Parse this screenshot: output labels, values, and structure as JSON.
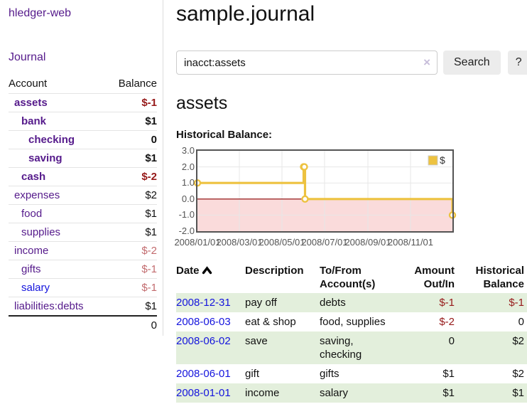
{
  "sidebar": {
    "brand": "hledger-web",
    "nav": {
      "journal": "Journal"
    },
    "table": {
      "col_account": "Account",
      "col_balance": "Balance"
    },
    "accounts": [
      {
        "name": "assets",
        "balance": "$-1",
        "level": 1,
        "bold": true,
        "negativity": "strong"
      },
      {
        "name": "bank",
        "balance": "$1",
        "level": 2,
        "bold": true,
        "negativity": "none"
      },
      {
        "name": "checking",
        "balance": "0",
        "level": 3,
        "bold": true,
        "negativity": "none"
      },
      {
        "name": "saving",
        "balance": "$1",
        "level": 3,
        "bold": true,
        "negativity": "none"
      },
      {
        "name": "cash",
        "balance": "$-2",
        "level": 2,
        "bold": true,
        "negativity": "strong"
      },
      {
        "name": "expenses",
        "balance": "$2",
        "level": 1,
        "bold": false,
        "negativity": "none"
      },
      {
        "name": "food",
        "balance": "$1",
        "level": 2,
        "bold": false,
        "negativity": "none"
      },
      {
        "name": "supplies",
        "balance": "$1",
        "level": 2,
        "bold": false,
        "negativity": "none"
      },
      {
        "name": "income",
        "balance": "$-2",
        "level": 1,
        "bold": false,
        "negativity": "soft"
      },
      {
        "name": "gifts",
        "balance": "$-1",
        "level": 2,
        "bold": false,
        "negativity": "soft"
      },
      {
        "name": "salary",
        "balance": "$-1",
        "level": 2,
        "bold": false,
        "negativity": "soft"
      },
      {
        "name": "liabilities:debts",
        "balance": "$1",
        "level": 1,
        "bold": false,
        "negativity": "none"
      }
    ],
    "total": "0"
  },
  "main": {
    "title": "sample.journal",
    "account_heading": "assets",
    "chart_title": "Historical Balance:"
  },
  "search": {
    "value": "inacct:assets",
    "clear_icon": "×",
    "submit_label": "Search",
    "help_label": "?"
  },
  "chart_data": {
    "type": "line",
    "title": "Historical Balance",
    "legend": {
      "position": "top-right",
      "entries": [
        "$"
      ]
    },
    "x_range": [
      "2008-01-01",
      "2008-12-31"
    ],
    "ylim": [
      -2,
      3
    ],
    "y_ticks": [
      "3.0",
      "2.0",
      "1.0",
      "0.0",
      "-1.0",
      "-2.0"
    ],
    "x_ticks": [
      "2008/01/01",
      "2008/03/01",
      "2008/05/01",
      "2008/07/01",
      "2008/09/01",
      "2008/11/01"
    ],
    "grid": true,
    "series": [
      {
        "name": "$",
        "step": true,
        "color": "#edc240",
        "points": [
          [
            "2008-01-01",
            1
          ],
          [
            "2008-06-01",
            2
          ],
          [
            "2008-06-02",
            2
          ],
          [
            "2008-06-03",
            0
          ],
          [
            "2008-12-31",
            -1
          ]
        ]
      }
    ],
    "colors": {
      "negative_area": "#fadbdb",
      "zero_line": "#8b0000",
      "grid": "#e7e7e7",
      "frame": "#545454",
      "tick_text": "#545454",
      "marker_fill": "#ffffff"
    }
  },
  "register": {
    "columns": {
      "date": "Date",
      "description": "Description",
      "accounts": "To/From Account(s)",
      "amount": "Amount Out/In",
      "balance": "Historical Balance"
    },
    "rows": [
      {
        "date": "2008-12-31",
        "description": "pay off",
        "accounts": "debts",
        "amount": "$-1",
        "balance": "$-1"
      },
      {
        "date": "2008-06-03",
        "description": "eat & shop",
        "accounts": "food, supplies",
        "amount": "$-2",
        "balance": "0"
      },
      {
        "date": "2008-06-02",
        "description": "save",
        "accounts": "saving, checking",
        "amount": "0",
        "balance": "$2"
      },
      {
        "date": "2008-06-01",
        "description": "gift",
        "accounts": "gifts",
        "amount": "$1",
        "balance": "$2"
      },
      {
        "date": "2008-01-01",
        "description": "income",
        "accounts": "salary",
        "amount": "$1",
        "balance": "$1"
      }
    ]
  },
  "colors": {
    "accent_purple": "#551a8b",
    "link_blue": "#1414dd",
    "negative_strong": "#961919",
    "negative_soft": "#c26b6e",
    "row_green": "#e3efdc",
    "chart_line": "#edc240",
    "button_bg": "#ececec",
    "input_border": "#cccccc",
    "clear_icon": "#c7bdda",
    "divider": "#dddddd"
  }
}
